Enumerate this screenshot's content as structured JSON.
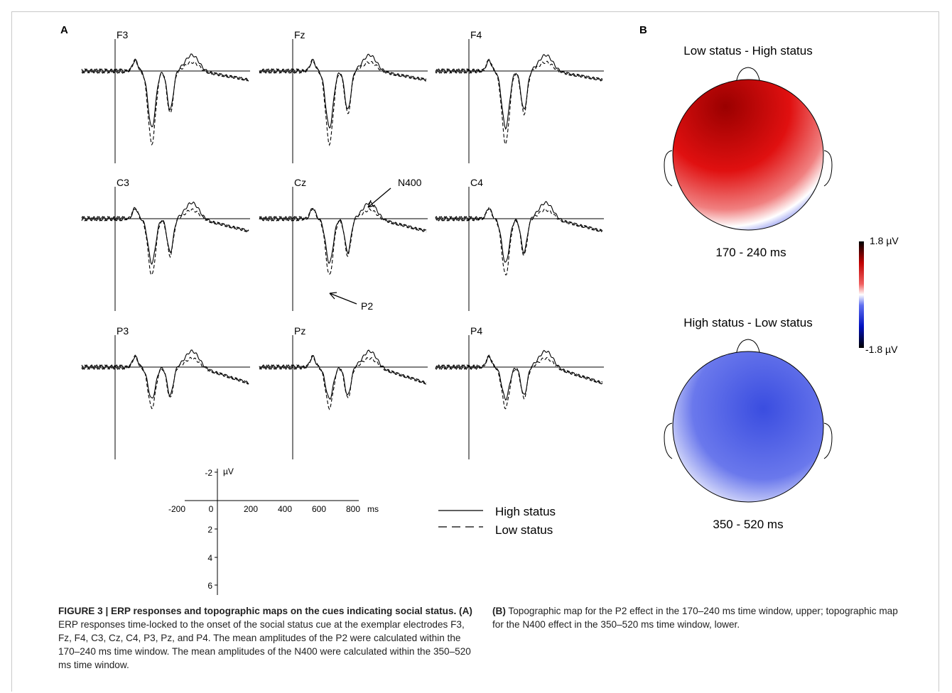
{
  "panel_a": {
    "label": "A",
    "electrodes": [
      "F3",
      "Fz",
      "F4",
      "C3",
      "Cz",
      "C4",
      "P3",
      "Pz",
      "P4"
    ],
    "annotations": {
      "n400": "N400",
      "p2": "P2"
    },
    "scale": {
      "y_unit": "µV",
      "y_ticks": [
        "-2",
        "2",
        "4",
        "6"
      ],
      "x_ticks": [
        "-200",
        "0",
        "200",
        "400",
        "600",
        "800"
      ],
      "x_unit": "ms"
    },
    "legend": [
      {
        "label": "High status",
        "style": "solid"
      },
      {
        "label": "Low status",
        "style": "dashed"
      }
    ]
  },
  "panel_b": {
    "label": "B",
    "maps": [
      {
        "title": "Low status - High status",
        "window": "170 - 240 ms"
      },
      {
        "title": "High status - Low status",
        "window": "350 - 520 ms"
      }
    ],
    "colorbar": {
      "max": "1.8 µV",
      "min": "-1.8 µV",
      "max_color": "#000000",
      "pos_color": "#e8000a",
      "zero_color": "#ffffff",
      "neg_color": "#0010e8"
    }
  },
  "caption": {
    "title": "FIGURE 3 | ERP responses and topographic maps on the cues indicating social status.",
    "a_tag": "(A)",
    "a_text": "ERP responses time-locked to the onset of the social status cue at the exemplar electrodes F3, Fz, F4, C3, Cz, C4, P3, Pz, and P4. The mean amplitudes of the P2 were calculated within the 170–240 ms time window. The mean amplitudes of the N400 were calculated within the 350–520 ms time window.",
    "b_tag": "(B)",
    "b_text": "Topographic map for the P2 effect in the 170–240 ms time window, upper; topographic map for the N400 effect in the 350–520 ms time window, lower."
  }
}
